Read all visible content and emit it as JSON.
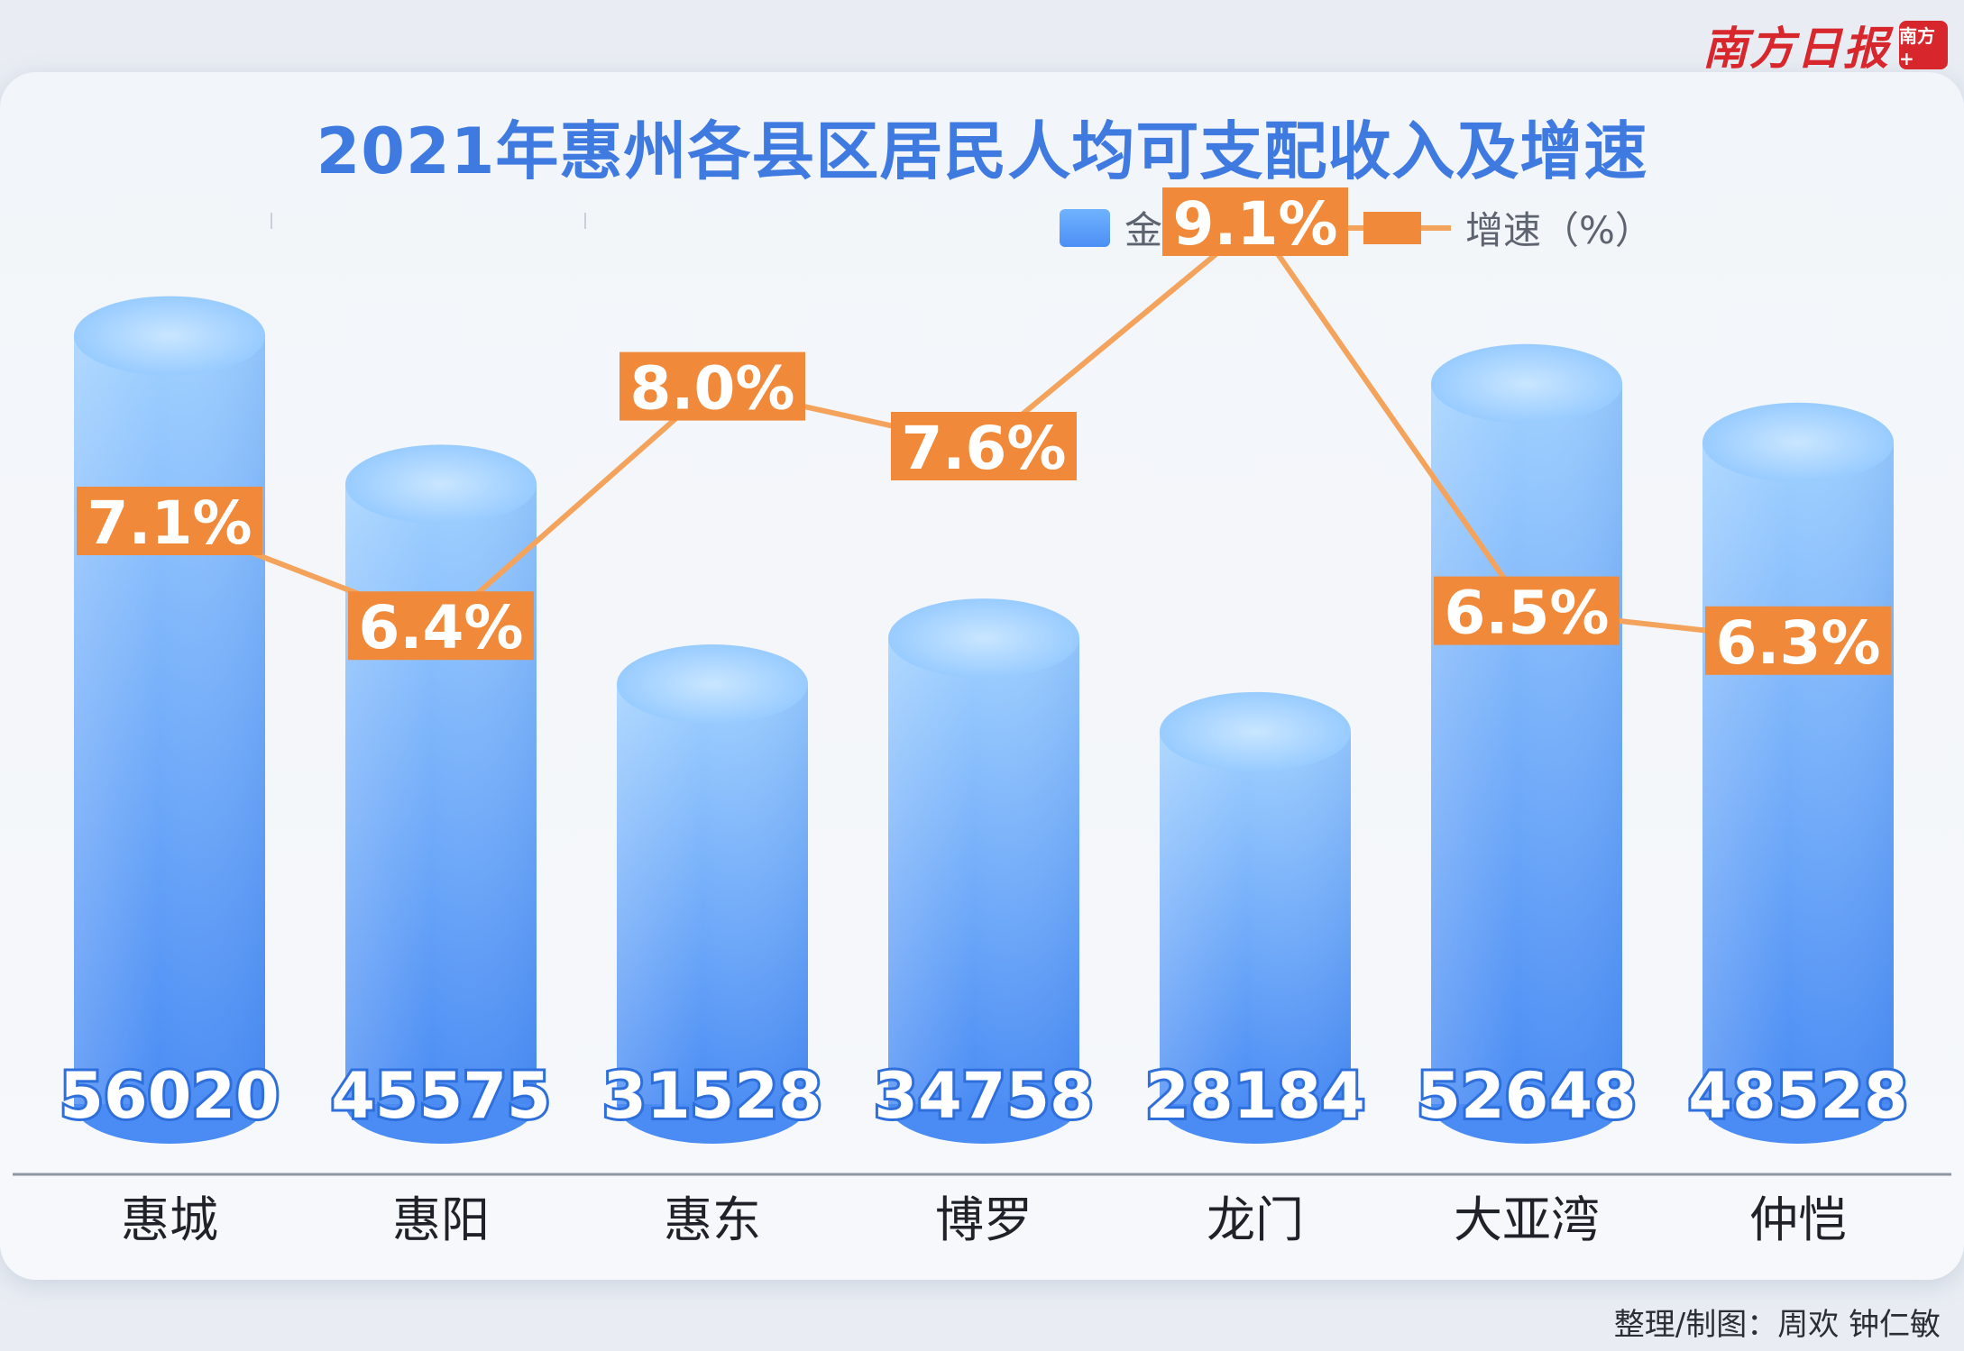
{
  "brand": {
    "name": "南方日报",
    "badge": "南方+"
  },
  "title": "2021年惠州各县区居民人均可支配收入及增速",
  "legend": {
    "bar_label": "金额（元）",
    "line_label": "增速（%）"
  },
  "credit": "整理/制图：周欢 钟仁敏",
  "colors": {
    "title": "#3f7ae0",
    "bar_top": "#a9d6ff",
    "bar_bottom": "#4a8cf4",
    "line": "#f4a35d",
    "label_box": "#f08a3a"
  },
  "chart_data": {
    "type": "bar",
    "title": "2021年惠州各县区居民人均可支配收入及增速",
    "categories": [
      "惠城",
      "惠阳",
      "惠东",
      "博罗",
      "龙门",
      "大亚湾",
      "仲恺"
    ],
    "series": [
      {
        "name": "金额（元）",
        "type": "bar",
        "values": [
          56020,
          45575,
          31528,
          34758,
          28184,
          52648,
          48528
        ]
      },
      {
        "name": "增速（%）",
        "type": "line",
        "values": [
          7.1,
          6.4,
          8.0,
          7.6,
          9.1,
          6.5,
          6.3
        ],
        "labels": [
          "7.1%",
          "6.4%",
          "8.0%",
          "7.6%",
          "9.1%",
          "6.5%",
          "6.3%"
        ]
      }
    ],
    "ylim": [
      0,
      60000
    ],
    "legend": "top-right",
    "grid": false
  }
}
